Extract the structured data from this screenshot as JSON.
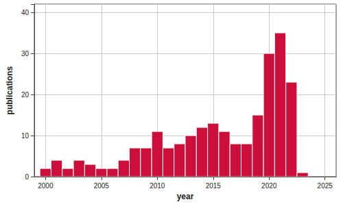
{
  "chart_data": {
    "type": "histogram",
    "xlabel": "year",
    "ylabel": "publications",
    "bins": [
      1999.5,
      2000.5,
      2001.5,
      2002.5,
      2003.5,
      2004.5,
      2005.5,
      2006.5,
      2007.5,
      2008.5,
      2009.5,
      2010.5,
      2011.5,
      2012.5,
      2013.5,
      2014.5,
      2015.5,
      2016.5,
      2017.5,
      2018.5,
      2019.5,
      2020.5,
      2021.5,
      2022.5,
      2023.5
    ],
    "values": [
      2,
      4,
      2,
      4,
      3,
      2,
      2,
      4,
      7,
      7,
      11,
      7,
      8,
      10,
      12,
      13,
      11,
      8,
      8,
      15,
      30,
      35,
      23,
      1
    ],
    "color": "#cc0e3a",
    "xlim": [
      1999,
      2026
    ],
    "xticks": [
      2000,
      2005,
      2010,
      2015,
      2020,
      2025
    ],
    "ylim": [
      0,
      42
    ],
    "yticks": [
      0,
      10,
      20,
      30,
      40
    ],
    "grid": true
  }
}
